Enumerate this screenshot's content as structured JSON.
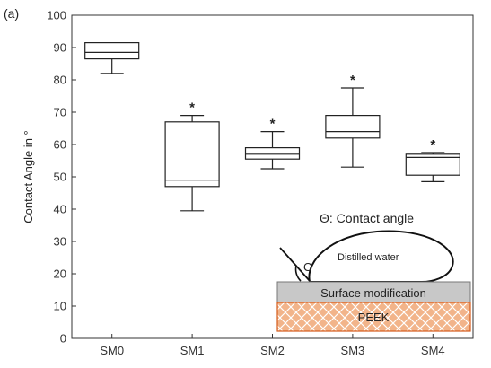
{
  "panel_label": "(a)",
  "chart_data": {
    "type": "box",
    "ylabel": "Contact Angle in °",
    "xlabel": "",
    "ylim": [
      0,
      100
    ],
    "yticks": [
      0,
      10,
      20,
      30,
      40,
      50,
      60,
      70,
      80,
      90,
      100
    ],
    "grid": false,
    "categories": [
      "SM0",
      "SM1",
      "SM2",
      "SM3",
      "SM4"
    ],
    "boxes": [
      {
        "category": "SM0",
        "whisker_low": 82,
        "q1": 86.5,
        "median": 88.5,
        "q3": 91.5,
        "whisker_high": 91.5,
        "outlier_marker": false
      },
      {
        "category": "SM1",
        "whisker_low": 39.5,
        "q1": 47,
        "median": 49,
        "q3": 67,
        "whisker_high": 69,
        "outlier_marker": true
      },
      {
        "category": "SM2",
        "whisker_low": 52.5,
        "q1": 55.5,
        "median": 57,
        "q3": 59,
        "whisker_high": 64,
        "outlier_marker": true
      },
      {
        "category": "SM3",
        "whisker_low": 53,
        "q1": 62,
        "median": 64,
        "q3": 69,
        "whisker_high": 77.5,
        "outlier_marker": true
      },
      {
        "category": "SM4",
        "whisker_low": 48.5,
        "q1": 50.5,
        "median": 56,
        "q3": 57,
        "whisker_high": 57.5,
        "outlier_marker": true
      }
    ],
    "marker_symbol": "*"
  },
  "inset": {
    "title": "Θ: Contact angle",
    "theta_symbol": "Θ",
    "droplet_label": "Distilled water",
    "surface_label": "Surface modification",
    "substrate_label": "PEEK",
    "colors": {
      "surface_fill": "#c8c8c8",
      "substrate_fill": "#f2b48a",
      "substrate_edge": "#d45a1a"
    }
  }
}
